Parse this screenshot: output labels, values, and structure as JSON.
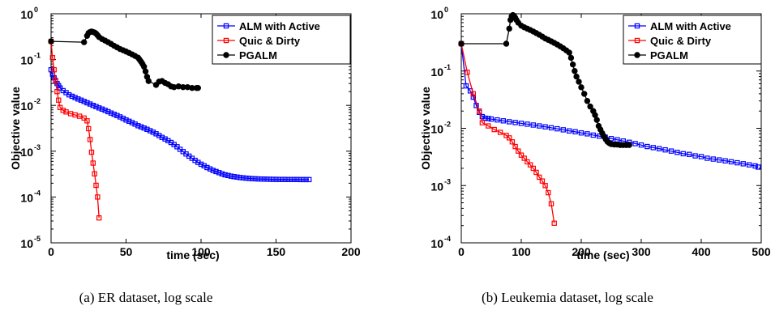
{
  "chart_data": [
    {
      "type": "line",
      "caption": "(a) ER dataset, log scale",
      "xlabel": "time (sec)",
      "ylabel": "Objective value",
      "xlim": [
        0,
        200
      ],
      "ylim_log10": [
        -5,
        0
      ],
      "xscale": "linear",
      "yscale": "log",
      "xticks": [
        0,
        50,
        100,
        150,
        200
      ],
      "yticks_exp": [
        -5,
        -4,
        -3,
        -2,
        -1,
        0
      ],
      "ytick_base": "10",
      "grid": false,
      "legend_position": "top-right",
      "series": [
        {
          "name": "ALM with Active",
          "color": "#0000ff",
          "marker": "square",
          "x": [
            0,
            1,
            2,
            3,
            4,
            5,
            6,
            8,
            10,
            12,
            14,
            16,
            18,
            20,
            22,
            24,
            26,
            28,
            30,
            32,
            34,
            36,
            38,
            40,
            42,
            44,
            46,
            48,
            50,
            52,
            54,
            56,
            58,
            60,
            62,
            64,
            66,
            68,
            70,
            72,
            74,
            76,
            78,
            80,
            82,
            84,
            86,
            88,
            90,
            92,
            94,
            96,
            98,
            100,
            102,
            104,
            106,
            108,
            110,
            112,
            114,
            116,
            118,
            120,
            122,
            124,
            126,
            128,
            130,
            132,
            134,
            136,
            138,
            140,
            142,
            144,
            146,
            148,
            150,
            152,
            154,
            156,
            158,
            160,
            162,
            164,
            166,
            168,
            170,
            172
          ],
          "y": [
            0.06,
            0.048,
            0.04,
            0.034,
            0.03,
            0.027,
            0.024,
            0.021,
            0.019,
            0.017,
            0.0158,
            0.0148,
            0.0138,
            0.013,
            0.0122,
            0.0114,
            0.0107,
            0.01,
            0.0094,
            0.0088,
            0.0083,
            0.0078,
            0.0073,
            0.0068,
            0.0064,
            0.006,
            0.0056,
            0.0052,
            0.0048,
            0.0045,
            0.0042,
            0.0039,
            0.0036,
            0.0034,
            0.0032,
            0.003,
            0.0028,
            0.0026,
            0.0024,
            0.0022,
            0.002,
            0.00185,
            0.0017,
            0.00155,
            0.0014,
            0.00125,
            0.0011,
            0.00098,
            0.00087,
            0.00078,
            0.0007,
            0.00063,
            0.00057,
            0.00052,
            0.00048,
            0.00044,
            0.00041,
            0.00038,
            0.00036,
            0.00034,
            0.00032,
            0.000305,
            0.000295,
            0.000285,
            0.000278,
            0.000272,
            0.000266,
            0.000262,
            0.000258,
            0.000255,
            0.000252,
            0.00025,
            0.000248,
            0.000247,
            0.000246,
            0.000245,
            0.000244,
            0.000243,
            0.000243,
            0.000242,
            0.000242,
            0.000242,
            0.000241,
            0.000241,
            0.000241,
            0.000241,
            0.00024,
            0.00024,
            0.00024,
            0.00024
          ]
        },
        {
          "name": "Quic & Dirty",
          "color": "#ff0000",
          "marker": "square",
          "x": [
            0,
            1,
            2,
            3,
            4,
            5,
            6,
            8,
            10,
            13,
            16,
            19,
            22,
            24,
            25,
            26,
            27,
            28,
            29,
            30,
            31,
            32
          ],
          "y": [
            0.25,
            0.11,
            0.06,
            0.035,
            0.02,
            0.013,
            0.009,
            0.0078,
            0.0072,
            0.0066,
            0.0062,
            0.0058,
            0.0053,
            0.0046,
            0.0031,
            0.0018,
            0.00095,
            0.00055,
            0.00032,
            0.00018,
            0.0001,
            3.5e-05
          ]
        },
        {
          "name": "PGALM",
          "color": "#000000",
          "marker": "circle",
          "x": [
            0,
            22,
            24,
            25,
            26,
            27,
            28,
            29,
            30,
            31,
            32,
            34,
            36,
            38,
            40,
            42,
            44,
            46,
            48,
            50,
            52,
            54,
            56,
            58,
            59,
            60,
            61,
            62,
            63,
            64,
            65,
            70,
            72,
            74,
            76,
            78,
            80,
            82,
            85,
            88,
            91,
            94,
            97,
            98
          ],
          "y": [
            0.25,
            0.24,
            0.33,
            0.38,
            0.4,
            0.41,
            0.4,
            0.39,
            0.37,
            0.34,
            0.31,
            0.28,
            0.26,
            0.24,
            0.22,
            0.2,
            0.185,
            0.17,
            0.16,
            0.15,
            0.14,
            0.13,
            0.12,
            0.11,
            0.1,
            0.09,
            0.08,
            0.07,
            0.055,
            0.042,
            0.034,
            0.028,
            0.033,
            0.034,
            0.031,
            0.029,
            0.026,
            0.025,
            0.026,
            0.025,
            0.025,
            0.024,
            0.024,
            0.024
          ]
        }
      ]
    },
    {
      "type": "line",
      "caption": "(b) Leukemia dataset, log scale",
      "xlabel": "time (sec)",
      "ylabel": "Objective value",
      "xlim": [
        0,
        500
      ],
      "ylim_log10": [
        -4,
        0
      ],
      "xscale": "linear",
      "yscale": "log",
      "xticks": [
        0,
        100,
        200,
        300,
        400,
        500
      ],
      "yticks_exp": [
        -4,
        -3,
        -2,
        -1,
        0
      ],
      "ytick_base": "10",
      "grid": false,
      "legend_position": "top-right",
      "series": [
        {
          "name": "ALM with Active",
          "color": "#0000ff",
          "marker": "square",
          "x": [
            0,
            8,
            15,
            20,
            25,
            30,
            35,
            40,
            45,
            50,
            60,
            70,
            80,
            90,
            100,
            110,
            120,
            130,
            140,
            150,
            160,
            170,
            180,
            190,
            200,
            210,
            220,
            230,
            240,
            250,
            260,
            270,
            280,
            290,
            300,
            310,
            320,
            330,
            340,
            350,
            360,
            370,
            380,
            390,
            400,
            410,
            420,
            430,
            440,
            450,
            460,
            470,
            480,
            490,
            495
          ],
          "y": [
            0.3,
            0.055,
            0.045,
            0.035,
            0.025,
            0.019,
            0.016,
            0.015,
            0.0148,
            0.0145,
            0.014,
            0.0135,
            0.013,
            0.0126,
            0.0122,
            0.0118,
            0.0114,
            0.011,
            0.0106,
            0.0102,
            0.0098,
            0.0094,
            0.009,
            0.0087,
            0.0083,
            0.008,
            0.0076,
            0.0073,
            0.007,
            0.0066,
            0.0063,
            0.006,
            0.0057,
            0.0054,
            0.0051,
            0.0048,
            0.0046,
            0.0044,
            0.0042,
            0.004,
            0.0038,
            0.0036,
            0.0035,
            0.0033,
            0.0032,
            0.003,
            0.0029,
            0.0028,
            0.0027,
            0.0026,
            0.0025,
            0.0024,
            0.0023,
            0.0022,
            0.0021
          ]
        },
        {
          "name": "Quic & Dirty",
          "color": "#ff0000",
          "marker": "square",
          "x": [
            0,
            10,
            20,
            30,
            35,
            45,
            55,
            65,
            75,
            80,
            85,
            90,
            95,
            100,
            105,
            110,
            115,
            120,
            125,
            130,
            135,
            140,
            145,
            150,
            155
          ],
          "y": [
            0.3,
            0.095,
            0.04,
            0.02,
            0.0125,
            0.011,
            0.0095,
            0.0085,
            0.0075,
            0.0068,
            0.0058,
            0.0048,
            0.004,
            0.0034,
            0.003,
            0.0026,
            0.0023,
            0.002,
            0.0017,
            0.0014,
            0.0012,
            0.001,
            0.00075,
            0.00048,
            0.00022
          ]
        },
        {
          "name": "PGALM",
          "color": "#000000",
          "marker": "circle",
          "x": [
            0,
            75,
            80,
            82,
            84,
            86,
            88,
            90,
            92,
            95,
            100,
            105,
            110,
            115,
            120,
            125,
            130,
            135,
            140,
            145,
            150,
            155,
            160,
            165,
            170,
            175,
            180,
            183,
            186,
            189,
            192,
            196,
            200,
            205,
            210,
            215,
            220,
            223,
            226,
            229,
            232,
            235,
            238,
            241,
            244,
            247,
            250,
            255,
            260,
            265,
            270,
            275,
            280
          ],
          "y": [
            0.3,
            0.3,
            0.55,
            0.78,
            0.9,
            0.95,
            0.92,
            0.85,
            0.78,
            0.7,
            0.62,
            0.58,
            0.55,
            0.52,
            0.49,
            0.46,
            0.43,
            0.4,
            0.37,
            0.35,
            0.33,
            0.31,
            0.29,
            0.27,
            0.25,
            0.23,
            0.21,
            0.17,
            0.13,
            0.1,
            0.08,
            0.065,
            0.052,
            0.04,
            0.03,
            0.024,
            0.02,
            0.017,
            0.014,
            0.011,
            0.0095,
            0.0082,
            0.0072,
            0.0064,
            0.0058,
            0.0055,
            0.0053,
            0.0052,
            0.0052,
            0.0051,
            0.0051,
            0.0051,
            0.0051
          ]
        }
      ]
    }
  ]
}
